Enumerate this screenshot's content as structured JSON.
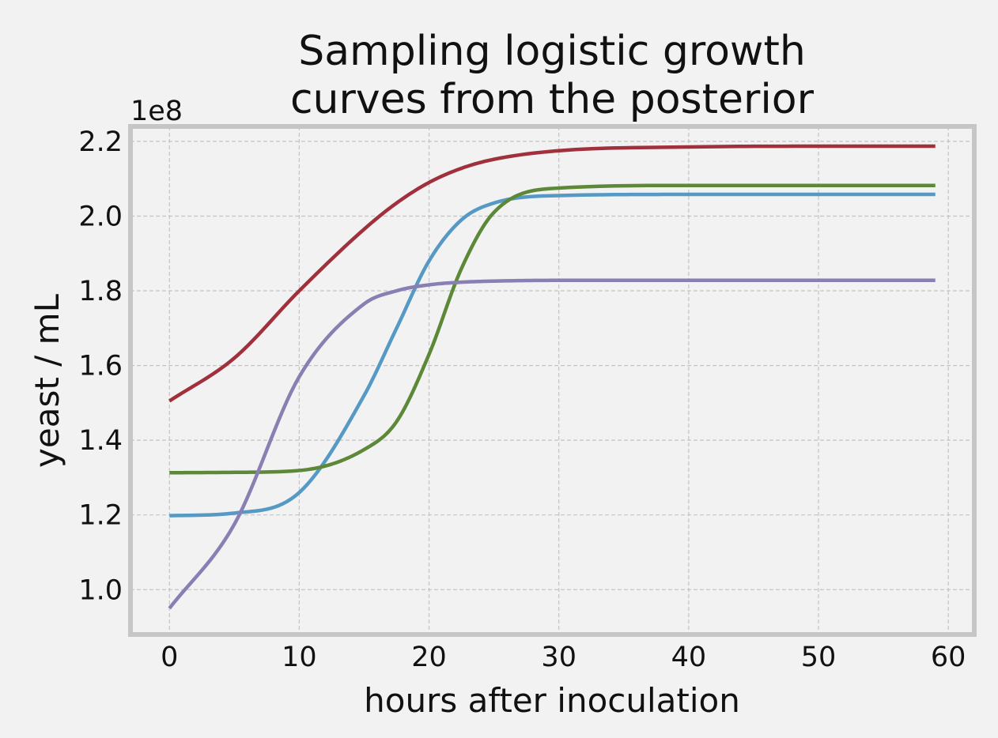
{
  "chart_data": {
    "type": "line",
    "title": "Sampling logistic growth\ncurves from the posterior",
    "xlabel": "hours after inoculation",
    "ylabel": "yeast / mL",
    "y_offset_label": "1e8",
    "y_scale": 100000000,
    "xlim": [
      -3,
      62
    ],
    "ylim": [
      88000000,
      224000000
    ],
    "xticks": [
      0,
      10,
      20,
      30,
      40,
      50,
      60
    ],
    "xtick_labels": [
      "0",
      "10",
      "20",
      "30",
      "40",
      "50",
      "60"
    ],
    "yticks": [
      100000000,
      120000000,
      140000000,
      160000000,
      180000000,
      200000000,
      220000000
    ],
    "ytick_labels": [
      "1.0",
      "1.2",
      "1.4",
      "1.6",
      "1.8",
      "2.0",
      "2.2"
    ],
    "grid": true,
    "legend": "none",
    "x": [
      0,
      5,
      10,
      15,
      17.5,
      20,
      22.5,
      25,
      30,
      40,
      50,
      59
    ],
    "series": [
      {
        "color": "#a0303c",
        "values": [
          150500000,
          162000000,
          180000000,
          196500000,
          203500000,
          209000000,
          212800000,
          215200000,
          217500000,
          218500000,
          218700000,
          218700000
        ]
      },
      {
        "color": "#5599c4",
        "values": [
          119800000,
          120500000,
          126000000,
          152000000,
          170000000,
          188000000,
          199000000,
          203500000,
          205500000,
          205800000,
          205800000,
          205800000
        ]
      },
      {
        "color": "#5c8838",
        "values": [
          131300000,
          131400000,
          131900000,
          137500000,
          145000000,
          163000000,
          186000000,
          201000000,
          207500000,
          208200000,
          208200000,
          208200000
        ]
      },
      {
        "color": "#8a7fb2",
        "values": [
          95000000,
          117500000,
          157000000,
          176500000,
          180000000,
          181600000,
          182300000,
          182600000,
          182800000,
          182800000,
          182800000,
          182800000
        ]
      }
    ]
  }
}
